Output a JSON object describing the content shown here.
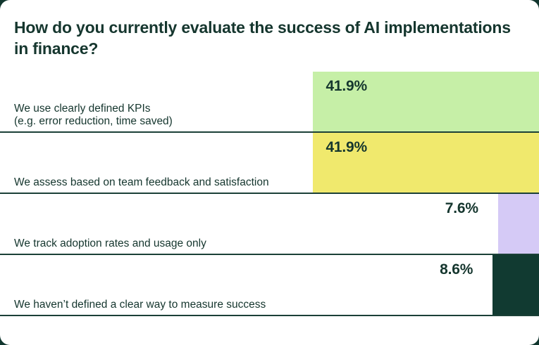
{
  "page": {
    "background_color": "#11362e",
    "card_color": "#ffffff",
    "text_color": "#15362e",
    "separator_color": "#1b4037"
  },
  "chart_data": {
    "type": "bar",
    "orientation": "horizontal",
    "title": "How do you currently evaluate the success of AI implementations in finance?",
    "unit": "%",
    "xlim": [
      0,
      100
    ],
    "bars_right_aligned": true,
    "grid": false,
    "legend": false,
    "categories": [
      "We use clearly defined KPIs\n(e.g. error reduction, time saved)",
      "We assess based on team feedback and satisfaction",
      "We track adoption rates and usage only",
      "We haven’t defined a clear way to measure success"
    ],
    "values": [
      41.9,
      41.9,
      7.6,
      8.6
    ],
    "value_labels": [
      "41.9%",
      "41.9%",
      "7.6%",
      "8.6%"
    ],
    "bar_colors": [
      "#c6efa7",
      "#f0e96d",
      "#d5caf6",
      "#113a31"
    ]
  }
}
